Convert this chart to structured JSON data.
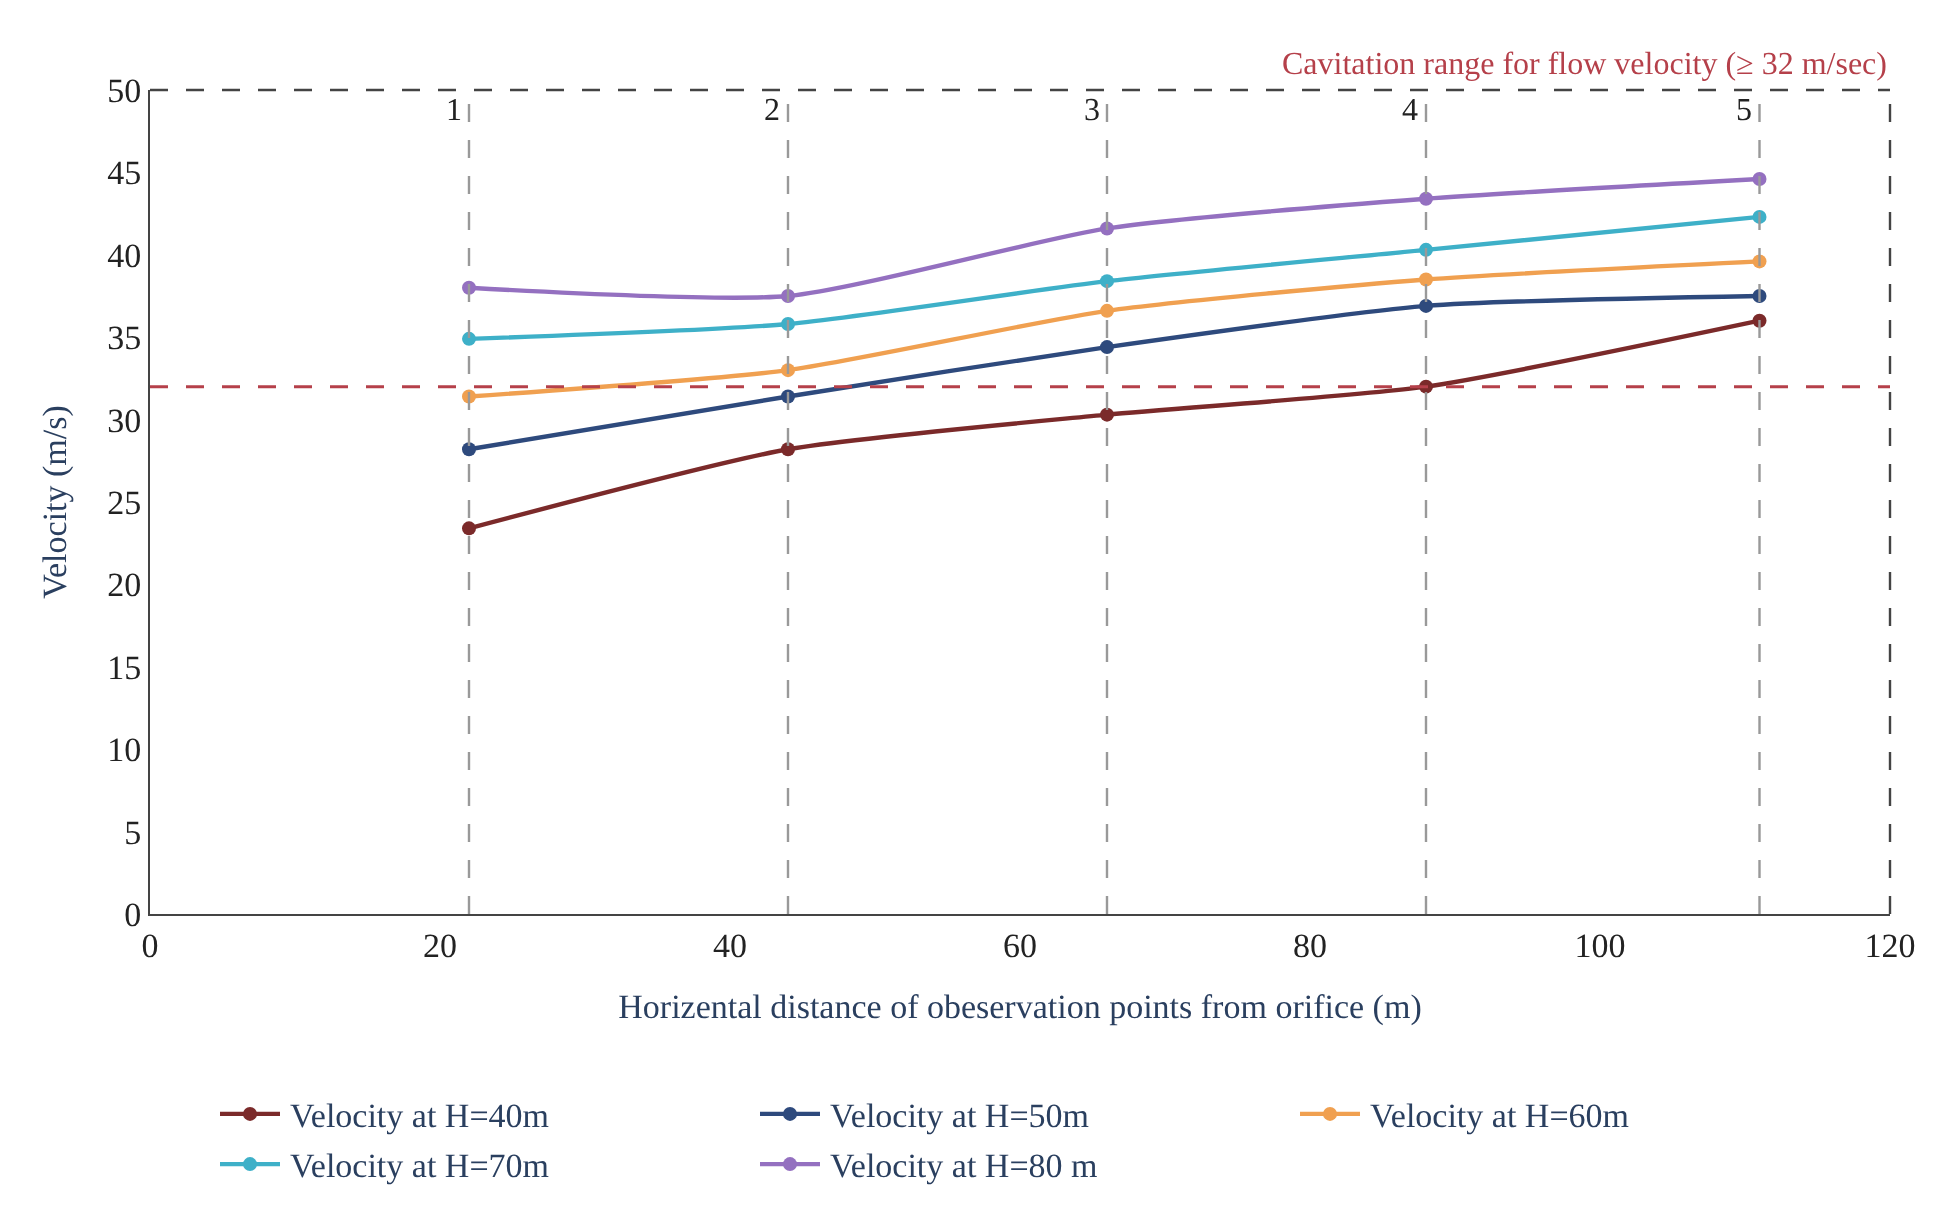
{
  "chart_data": {
    "type": "line",
    "xlabel": "Horizental distance of obeservation points from orifice (m)",
    "ylabel": "Velocity (m/s)",
    "x": [
      22,
      44,
      66,
      88,
      111
    ],
    "series": [
      {
        "name": "Velocity at H=40m",
        "color": "#7b2a2a",
        "values": [
          23.4,
          28.2,
          30.3,
          32.0,
          36.0
        ]
      },
      {
        "name": "Velocity at H=50m",
        "color": "#2e4a7d",
        "values": [
          28.2,
          31.4,
          34.4,
          36.9,
          37.5
        ]
      },
      {
        "name": "Velocity at H=60m",
        "color": "#f0a050",
        "values": [
          31.4,
          33.0,
          36.6,
          38.5,
          39.6
        ]
      },
      {
        "name": "Velocity at H=70m",
        "color": "#3eb0c8",
        "values": [
          34.9,
          35.8,
          38.4,
          40.3,
          42.3
        ]
      },
      {
        "name": "Velocity at H=80 m",
        "color": "#9470c0",
        "values": [
          38.0,
          37.5,
          41.6,
          43.4,
          44.6
        ]
      }
    ],
    "xlim": [
      0,
      120
    ],
    "xticks": [
      0,
      20,
      40,
      60,
      80,
      100,
      120
    ],
    "ylim": [
      0,
      50
    ],
    "yticks": [
      0,
      5,
      10,
      15,
      20,
      25,
      30,
      35,
      40,
      45,
      50
    ],
    "ref_lines": [
      {
        "axis": "y",
        "value": 32,
        "label": "Cavitation range for flow velocity (≥ 32 m/sec)",
        "color": "#b5404a",
        "line_style": "dashed"
      },
      {
        "axis": "x",
        "value": 22,
        "color": "#999999",
        "line_style": "dashed"
      },
      {
        "axis": "x",
        "value": 44,
        "color": "#999999",
        "line_style": "dashed"
      },
      {
        "axis": "x",
        "value": 66,
        "color": "#999999",
        "line_style": "dashed"
      },
      {
        "axis": "x",
        "value": 88,
        "color": "#999999",
        "line_style": "dashed"
      },
      {
        "axis": "x",
        "value": 111,
        "color": "#999999",
        "line_style": "dashed"
      }
    ],
    "annotations": [
      {
        "text": "1",
        "x": 22,
        "y": 50
      },
      {
        "text": "2",
        "x": 44,
        "y": 50
      },
      {
        "text": "3",
        "x": 66,
        "y": 50
      },
      {
        "text": "4",
        "x": 88,
        "y": 50
      },
      {
        "text": "5",
        "x": 111,
        "y": 50
      }
    ],
    "marker": "circle",
    "line_style": "solid",
    "legend": "bottom"
  }
}
